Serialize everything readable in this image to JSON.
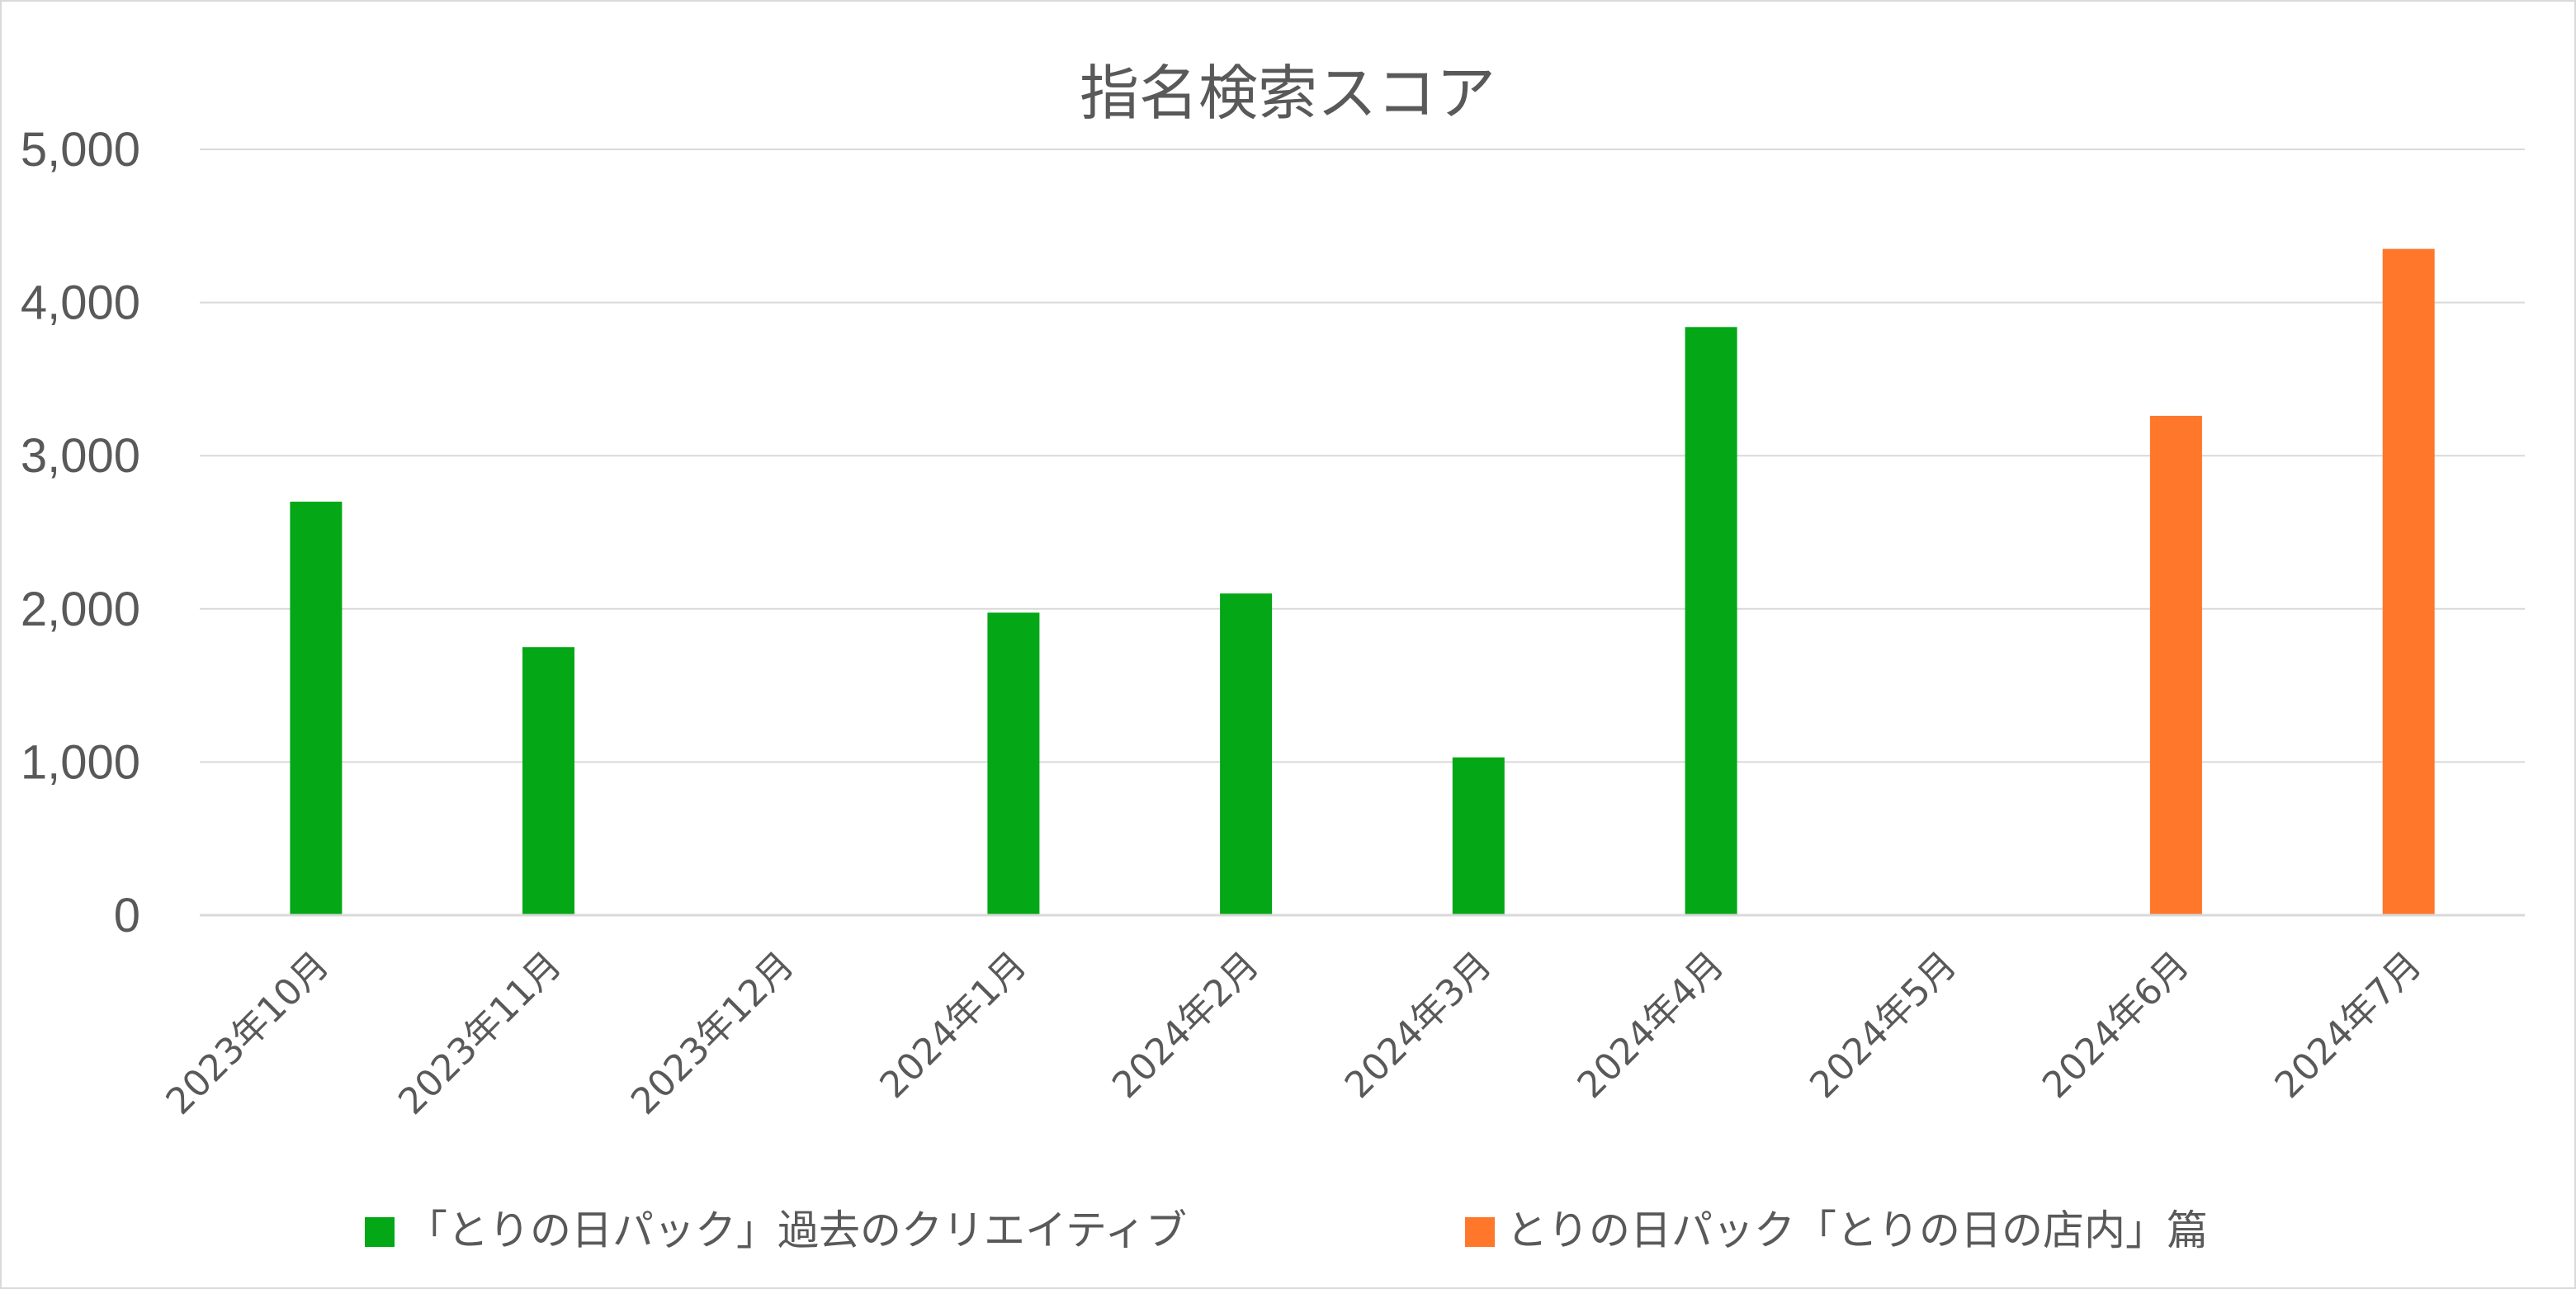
{
  "chart_data": {
    "type": "bar",
    "title": "指名検索スコア",
    "xlabel": "",
    "ylabel": "",
    "ylim": [
      0,
      5000
    ],
    "yticks": [
      0,
      1000,
      2000,
      3000,
      4000,
      5000
    ],
    "ytick_labels": [
      "0",
      "1,000",
      "2,000",
      "3,000",
      "4,000",
      "5,000"
    ],
    "grid": true,
    "legend_position": "bottom",
    "categories": [
      "2023年10月",
      "2023年11月",
      "2023年12月",
      "2024年1月",
      "2024年2月",
      "2024年3月",
      "2024年4月",
      "2024年5月",
      "2024年6月",
      "2024年7月"
    ],
    "series": [
      {
        "name": "「とりの日パック」過去のクリエイティブ",
        "color": "#04a715",
        "values": [
          2700,
          1750,
          null,
          1975,
          2100,
          1030,
          3840,
          null,
          null,
          null
        ]
      },
      {
        "name": "とりの日パック「とりの日の店内」篇",
        "color": "#ff772b",
        "values": [
          null,
          null,
          null,
          null,
          null,
          null,
          null,
          null,
          3260,
          4350
        ]
      }
    ]
  }
}
